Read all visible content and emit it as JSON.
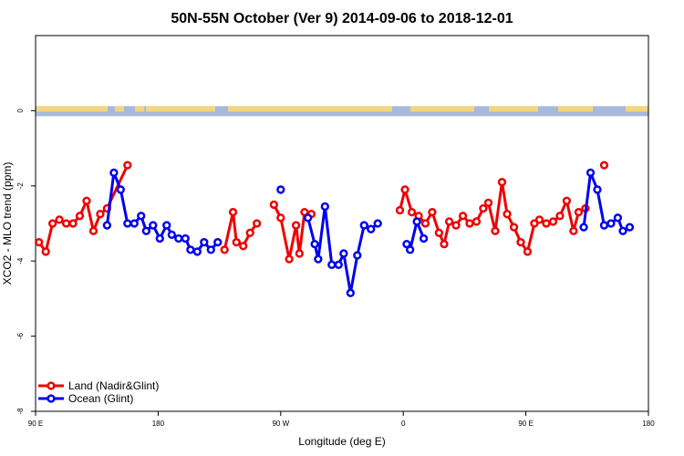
{
  "chart_data": {
    "type": "line",
    "title": "50N-55N October (Ver 9)   2014-09-06 to 2018-12-01",
    "xlabel": "Longitude (deg E)",
    "ylabel": "XCO2 - MLO trend (ppm)",
    "xlim": [
      90,
      450
    ],
    "ylim": [
      -8,
      2
    ],
    "x_ticks": [
      {
        "value": 90,
        "label": "90 E"
      },
      {
        "value": 162,
        "label": "180"
      },
      {
        "value": 234,
        "label": "90 W"
      },
      {
        "value": 306,
        "label": "0"
      },
      {
        "value": 378,
        "label": "90 E"
      },
      {
        "value": 450,
        "label": "180"
      }
    ],
    "y_ticks": [
      {
        "value": 0,
        "label": "0"
      },
      {
        "value": -2,
        "label": "-2"
      },
      {
        "value": -4,
        "label": "-4"
      },
      {
        "value": -6,
        "label": "-6"
      },
      {
        "value": -8,
        "label": "-8"
      }
    ],
    "land_ocean_band": {
      "y": 0,
      "land_color": "#f5d67a",
      "ocean_color": "#a6b9dd"
    },
    "legend_position": "bottom-left",
    "series": [
      {
        "name": "Land (Nadir&Glint)",
        "color": "#ee0000",
        "segments": [
          [
            [
              92,
              -3.5
            ],
            [
              96,
              -3.75
            ],
            [
              100,
              -3.0
            ],
            [
              104,
              -2.9
            ],
            [
              108,
              -3.0
            ],
            [
              112,
              -3.0
            ],
            [
              116,
              -2.8
            ],
            [
              120,
              -2.4
            ],
            [
              124,
              -3.2
            ],
            [
              128,
              -2.75
            ],
            [
              132,
              -2.6
            ],
            [
              144,
              -1.45
            ]
          ],
          [
            [
              201,
              -3.7
            ],
            [
              206,
              -2.7
            ],
            [
              208,
              -3.5
            ],
            [
              212,
              -3.6
            ],
            [
              216,
              -3.25
            ],
            [
              220,
              -3.0
            ]
          ],
          [
            [
              230,
              -2.5
            ],
            [
              234,
              -2.85
            ],
            [
              239,
              -3.95
            ],
            [
              243,
              -3.05
            ],
            [
              245,
              -3.8
            ],
            [
              248,
              -2.7
            ],
            [
              252,
              -2.75
            ]
          ],
          [
            [
              304,
              -2.65
            ],
            [
              307,
              -2.1
            ],
            [
              311,
              -2.7
            ],
            [
              315,
              -2.8
            ],
            [
              319,
              -3.0
            ],
            [
              323,
              -2.7
            ],
            [
              327,
              -3.25
            ],
            [
              330,
              -3.55
            ],
            [
              333,
              -2.95
            ],
            [
              337,
              -3.05
            ],
            [
              341,
              -2.8
            ],
            [
              345,
              -3.0
            ],
            [
              349,
              -2.95
            ],
            [
              353,
              -2.6
            ],
            [
              356,
              -2.45
            ],
            [
              360,
              -3.2
            ],
            [
              364,
              -1.9
            ],
            [
              367,
              -2.75
            ],
            [
              371,
              -3.1
            ],
            [
              375,
              -3.5
            ],
            [
              379,
              -3.75
            ],
            [
              383,
              -3.0
            ],
            [
              386,
              -2.9
            ],
            [
              390,
              -3.0
            ],
            [
              394,
              -2.95
            ],
            [
              398,
              -2.8
            ],
            [
              402,
              -2.4
            ],
            [
              406,
              -3.2
            ],
            [
              409,
              -2.7
            ],
            [
              413,
              -2.6
            ]
          ],
          [
            [
              424,
              -1.45
            ]
          ]
        ]
      },
      {
        "name": "Ocean (Glint)",
        "color": "#0000ee",
        "segments": [
          [
            [
              132,
              -3.05
            ],
            [
              136,
              -1.65
            ],
            [
              140,
              -2.1
            ],
            [
              144,
              -3.0
            ],
            [
              148,
              -3.0
            ],
            [
              152,
              -2.8
            ],
            [
              155,
              -3.2
            ],
            [
              159,
              -3.05
            ],
            [
              163,
              -3.4
            ],
            [
              167,
              -3.05
            ],
            [
              170,
              -3.3
            ],
            [
              174,
              -3.4
            ],
            [
              178,
              -3.4
            ],
            [
              181,
              -3.7
            ],
            [
              185,
              -3.75
            ],
            [
              189,
              -3.5
            ],
            [
              193,
              -3.7
            ],
            [
              197,
              -3.5
            ]
          ],
          [
            [
              234,
              -2.1
            ]
          ],
          [
            [
              250,
              -2.85
            ],
            [
              254,
              -3.55
            ],
            [
              256,
              -3.95
            ],
            [
              260,
              -2.55
            ],
            [
              264,
              -4.1
            ],
            [
              268,
              -4.1
            ],
            [
              271,
              -3.8
            ],
            [
              275,
              -4.85
            ],
            [
              279,
              -3.85
            ],
            [
              283,
              -3.05
            ],
            [
              287,
              -3.15
            ],
            [
              291,
              -3.0
            ]
          ],
          [
            [
              308,
              -3.55
            ],
            [
              310,
              -3.7
            ],
            [
              314,
              -2.95
            ],
            [
              318,
              -3.4
            ]
          ],
          [
            [
              412,
              -3.1
            ],
            [
              416,
              -1.65
            ],
            [
              420,
              -2.1
            ],
            [
              424,
              -3.05
            ],
            [
              428,
              -3.0
            ],
            [
              432,
              -2.85
            ],
            [
              435,
              -3.2
            ],
            [
              439,
              -3.1
            ]
          ]
        ]
      }
    ]
  }
}
